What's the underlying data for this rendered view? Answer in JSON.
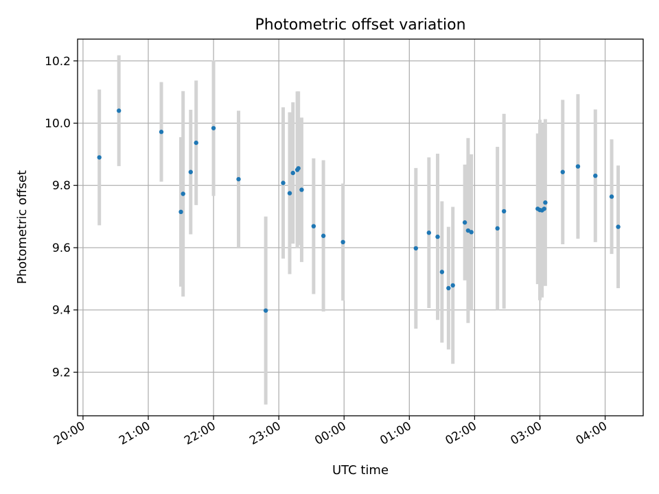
{
  "chart_data": {
    "type": "scatter",
    "title": "Photometric offset variation",
    "xlabel": "UTC time",
    "ylabel": "Photometric offset",
    "x_axis_type": "time",
    "x_tick_labels": [
      "20:00",
      "21:00",
      "22:00",
      "23:00",
      "00:00",
      "01:00",
      "02:00",
      "03:00",
      "04:00"
    ],
    "y_ticks": [
      9.2,
      9.4,
      9.6,
      9.8,
      10.0,
      10.2
    ],
    "ylim": [
      9.06,
      10.27
    ],
    "xlim": [
      "19:55",
      "04:35"
    ],
    "grid": true,
    "colors": {
      "marker": "#1f77b4",
      "error_bar": "#d3d3d3",
      "grid": "#b0b0b0"
    },
    "series": [
      {
        "points": [
          {
            "t": "20:15",
            "y": 9.89,
            "err": 0.218
          },
          {
            "t": "20:33",
            "y": 10.04,
            "err": 0.178
          },
          {
            "t": "21:12",
            "y": 9.972,
            "err": 0.16
          },
          {
            "t": "21:30",
            "y": 9.715,
            "err": 0.24
          },
          {
            "t": "21:32",
            "y": 9.773,
            "err": 0.33
          },
          {
            "t": "21:39",
            "y": 9.843,
            "err": 0.2
          },
          {
            "t": "21:44",
            "y": 9.937,
            "err": 0.2
          },
          {
            "t": "22:00",
            "y": 9.984,
            "err": 0.218
          },
          {
            "t": "22:23",
            "y": 9.82,
            "err": 0.22
          },
          {
            "t": "22:48",
            "y": 9.398,
            "err": 0.302
          },
          {
            "t": "23:04",
            "y": 9.808,
            "err": 0.243
          },
          {
            "t": "23:10",
            "y": 9.775,
            "err": 0.26
          },
          {
            "t": "23:13",
            "y": 9.84,
            "err": 0.227
          },
          {
            "t": "23:17",
            "y": 9.85,
            "err": 0.252
          },
          {
            "t": "23:18",
            "y": 9.855,
            "err": 0.247
          },
          {
            "t": "23:21",
            "y": 9.786,
            "err": 0.232
          },
          {
            "t": "23:32",
            "y": 9.669,
            "err": 0.218
          },
          {
            "t": "23:41",
            "y": 9.638,
            "err": 0.243
          },
          {
            "t": "23:59",
            "y": 9.618,
            "err": 0.188
          },
          {
            "t": "01:06",
            "y": 9.598,
            "err": 0.258
          },
          {
            "t": "01:18",
            "y": 9.648,
            "err": 0.242
          },
          {
            "t": "01:26",
            "y": 9.635,
            "err": 0.267
          },
          {
            "t": "01:30",
            "y": 9.522,
            "err": 0.227
          },
          {
            "t": "01:36",
            "y": 9.47,
            "err": 0.197
          },
          {
            "t": "01:40",
            "y": 9.479,
            "err": 0.252
          },
          {
            "t": "01:51",
            "y": 9.681,
            "err": 0.186
          },
          {
            "t": "01:54",
            "y": 9.655,
            "err": 0.297
          },
          {
            "t": "01:57",
            "y": 9.65,
            "err": 0.25
          },
          {
            "t": "02:21",
            "y": 9.662,
            "err": 0.262
          },
          {
            "t": "02:27",
            "y": 9.717,
            "err": 0.313
          },
          {
            "t": "02:58",
            "y": 9.725,
            "err": 0.242
          },
          {
            "t": "03:00",
            "y": 9.721,
            "err": 0.29
          },
          {
            "t": "03:02",
            "y": 9.72,
            "err": 0.28
          },
          {
            "t": "03:04",
            "y": 9.725,
            "err": 0.245
          },
          {
            "t": "03:05",
            "y": 9.745,
            "err": 0.268
          },
          {
            "t": "03:21",
            "y": 9.843,
            "err": 0.232
          },
          {
            "t": "03:35",
            "y": 9.861,
            "err": 0.232
          },
          {
            "t": "03:51",
            "y": 9.831,
            "err": 0.213
          },
          {
            "t": "04:06",
            "y": 9.764,
            "err": 0.184
          },
          {
            "t": "04:12",
            "y": 9.667,
            "err": 0.197
          }
        ]
      }
    ]
  }
}
